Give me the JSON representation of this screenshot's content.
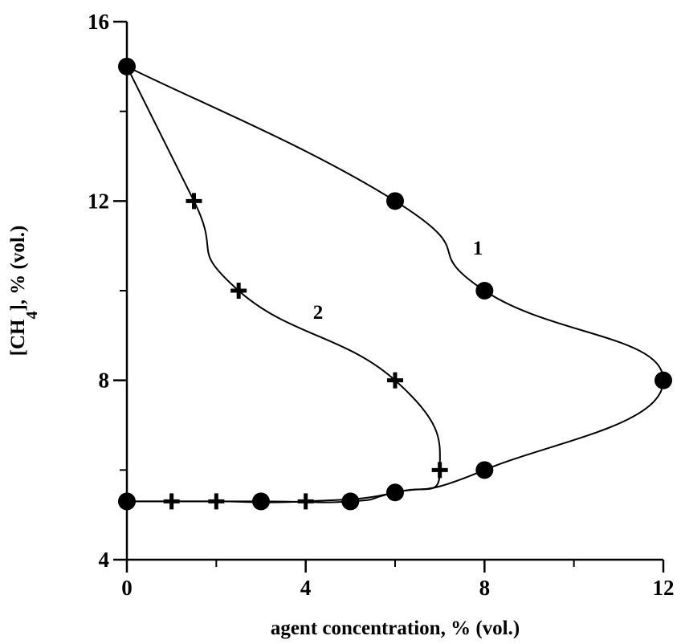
{
  "chart_data": {
    "type": "line",
    "xlabel": "agent concentration, % (vol.)",
    "ylabel": [
      "[CH",
      "4",
      "], % (vol.)"
    ],
    "xlim": [
      0,
      12
    ],
    "ylim": [
      4,
      16
    ],
    "xticks": [
      0,
      4,
      8,
      12
    ],
    "yticks": [
      4,
      8,
      12,
      16
    ],
    "xminorticks": [
      2,
      6,
      10
    ],
    "yminorticks": [
      6,
      10,
      14
    ],
    "color": "#000000",
    "series": [
      {
        "name": "1",
        "marker": "circle",
        "x": [
          0,
          6,
          8,
          12,
          8,
          6,
          5,
          3,
          0
        ],
        "values": [
          15,
          12,
          10,
          8,
          6,
          5.5,
          5.3,
          5.3,
          5.3
        ]
      },
      {
        "name": "2",
        "marker": "cross",
        "x": [
          0,
          1.5,
          2.5,
          6,
          7,
          6,
          4,
          2,
          1,
          0
        ],
        "values": [
          15,
          12,
          10,
          8,
          6,
          5.5,
          5.3,
          5.3,
          5.3,
          5.3
        ]
      }
    ]
  }
}
